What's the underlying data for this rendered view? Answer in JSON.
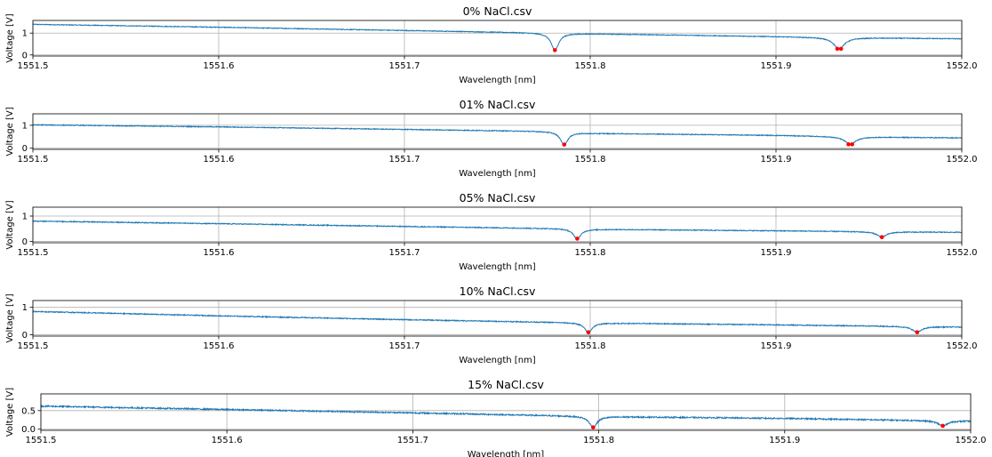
{
  "colors": {
    "line": "#1f77b4",
    "peak": "#ff0000",
    "grid": "#b0b0b0",
    "axis": "#000000"
  },
  "chart_data": [
    {
      "type": "line",
      "title": "0% NaCl.csv",
      "xlabel": "Wavelength [nm]",
      "ylabel": "Voltage [V]",
      "xlim": [
        1551.5,
        1552.0
      ],
      "ylim": [
        -0.05,
        1.58
      ],
      "xticks": [
        1551.5,
        1551.6,
        1551.7,
        1551.8,
        1551.9,
        1552.0
      ],
      "xtick_labels": [
        "1551.5",
        "1551.6",
        "1551.7",
        "1551.8",
        "1551.9",
        "1552.0"
      ],
      "yticks": [
        0,
        1
      ],
      "ytick_labels": [
        "0",
        "1"
      ],
      "grid": true,
      "baseline_points": [
        [
          1551.5,
          1.4
        ],
        [
          1551.6,
          1.27
        ],
        [
          1551.7,
          1.12
        ],
        [
          1551.76,
          1.03
        ],
        [
          1551.8,
          0.97
        ],
        [
          1551.9,
          0.84
        ],
        [
          1551.93,
          0.8
        ],
        [
          1552.0,
          0.74
        ]
      ],
      "dips": [
        {
          "x": 1551.781,
          "min": 0.22,
          "width": 0.0025
        },
        {
          "x": 1551.934,
          "min": 0.28,
          "width": 0.0035
        }
      ],
      "peak_markers": [
        [
          1551.781,
          0.22
        ],
        [
          1551.933,
          0.28
        ],
        [
          1551.935,
          0.28
        ]
      ]
    },
    {
      "type": "line",
      "title": "01% NaCl.csv",
      "xlabel": "Wavelength [nm]",
      "ylabel": "Voltage [V]",
      "xlim": [
        1551.5,
        1552.0
      ],
      "ylim": [
        -0.05,
        1.5
      ],
      "xticks": [
        1551.5,
        1551.6,
        1551.7,
        1551.8,
        1551.9,
        1552.0
      ],
      "xtick_labels": [
        "1551.5",
        "1551.6",
        "1551.7",
        "1551.8",
        "1551.9",
        "1552.0"
      ],
      "yticks": [
        0,
        1
      ],
      "ytick_labels": [
        "0",
        "1"
      ],
      "grid": true,
      "baseline_points": [
        [
          1551.5,
          1.02
        ],
        [
          1551.6,
          0.93
        ],
        [
          1551.7,
          0.82
        ],
        [
          1551.78,
          0.73
        ],
        [
          1551.8,
          0.65
        ],
        [
          1551.9,
          0.56
        ],
        [
          1551.94,
          0.5
        ],
        [
          1552.0,
          0.45
        ]
      ],
      "dips": [
        {
          "x": 1551.786,
          "min": 0.16,
          "width": 0.0025
        },
        {
          "x": 1551.94,
          "min": 0.17,
          "width": 0.0035
        }
      ],
      "peak_markers": [
        [
          1551.786,
          0.16
        ],
        [
          1551.939,
          0.17
        ],
        [
          1551.941,
          0.17
        ]
      ]
    },
    {
      "type": "line",
      "title": "05% NaCl.csv",
      "xlabel": "Wavelength [nm]",
      "ylabel": "Voltage [V]",
      "xlim": [
        1551.5,
        1552.0
      ],
      "ylim": [
        -0.05,
        1.35
      ],
      "xticks": [
        1551.5,
        1551.6,
        1551.7,
        1551.8,
        1551.9,
        1552.0
      ],
      "xtick_labels": [
        "1551.5",
        "1551.6",
        "1551.7",
        "1551.8",
        "1551.9",
        "1552.0"
      ],
      "yticks": [
        0,
        1
      ],
      "ytick_labels": [
        "0",
        "1"
      ],
      "grid": true,
      "baseline_points": [
        [
          1551.5,
          0.8
        ],
        [
          1551.6,
          0.7
        ],
        [
          1551.7,
          0.59
        ],
        [
          1551.79,
          0.5
        ],
        [
          1551.8,
          0.48
        ],
        [
          1551.9,
          0.42
        ],
        [
          1551.957,
          0.38
        ],
        [
          1552.0,
          0.36
        ]
      ],
      "dips": [
        {
          "x": 1551.793,
          "min": 0.11,
          "width": 0.0025
        },
        {
          "x": 1551.957,
          "min": 0.17,
          "width": 0.003
        }
      ],
      "peak_markers": [
        [
          1551.793,
          0.11
        ],
        [
          1551.957,
          0.17
        ]
      ]
    },
    {
      "type": "line",
      "title": "10% NaCl.csv",
      "xlabel": "Wavelength [nm]",
      "ylabel": "Voltage [V]",
      "xlim": [
        1551.5,
        1552.0
      ],
      "ylim": [
        -0.05,
        1.25
      ],
      "xticks": [
        1551.5,
        1551.6,
        1551.7,
        1551.8,
        1551.9,
        1552.0
      ],
      "xtick_labels": [
        "1551.5",
        "1551.6",
        "1551.7",
        "1551.8",
        "1551.9",
        "1552.0"
      ],
      "yticks": [
        0,
        1
      ],
      "ytick_labels": [
        "0",
        "1"
      ],
      "grid": true,
      "baseline_points": [
        [
          1551.5,
          0.85
        ],
        [
          1551.6,
          0.69
        ],
        [
          1551.7,
          0.55
        ],
        [
          1551.8,
          0.43
        ],
        [
          1551.9,
          0.36
        ],
        [
          1551.976,
          0.3
        ],
        [
          1552.0,
          0.28
        ]
      ],
      "dips": [
        {
          "x": 1551.799,
          "min": 0.09,
          "width": 0.0025
        },
        {
          "x": 1551.976,
          "min": 0.09,
          "width": 0.003
        }
      ],
      "peak_markers": [
        [
          1551.799,
          0.09
        ],
        [
          1551.976,
          0.09
        ]
      ]
    },
    {
      "type": "line",
      "title": "15% NaCl.csv",
      "xlabel": "Wavelength [nm]",
      "ylabel": "Voltage [V]",
      "xlim": [
        1551.5,
        1552.0
      ],
      "ylim": [
        -0.03,
        0.95
      ],
      "xticks": [
        1551.5,
        1551.6,
        1551.7,
        1551.8,
        1551.9,
        1552.0
      ],
      "xtick_labels": [
        "1551.5",
        "1551.6",
        "1551.7",
        "1551.8",
        "1551.9",
        "1552.0"
      ],
      "yticks": [
        0,
        0.5
      ],
      "ytick_labels": [
        "0.0",
        "0.5"
      ],
      "grid": true,
      "baseline_points": [
        [
          1551.5,
          0.62
        ],
        [
          1551.6,
          0.53
        ],
        [
          1551.7,
          0.44
        ],
        [
          1551.79,
          0.35
        ],
        [
          1551.8,
          0.34
        ],
        [
          1551.9,
          0.29
        ],
        [
          1551.98,
          0.23
        ],
        [
          1552.0,
          0.22
        ]
      ],
      "dips": [
        {
          "x": 1551.797,
          "min": 0.05,
          "width": 0.0025
        },
        {
          "x": 1551.985,
          "min": 0.09,
          "width": 0.003
        }
      ],
      "peak_markers": [
        [
          1551.797,
          0.05
        ],
        [
          1551.985,
          0.09
        ]
      ]
    }
  ]
}
